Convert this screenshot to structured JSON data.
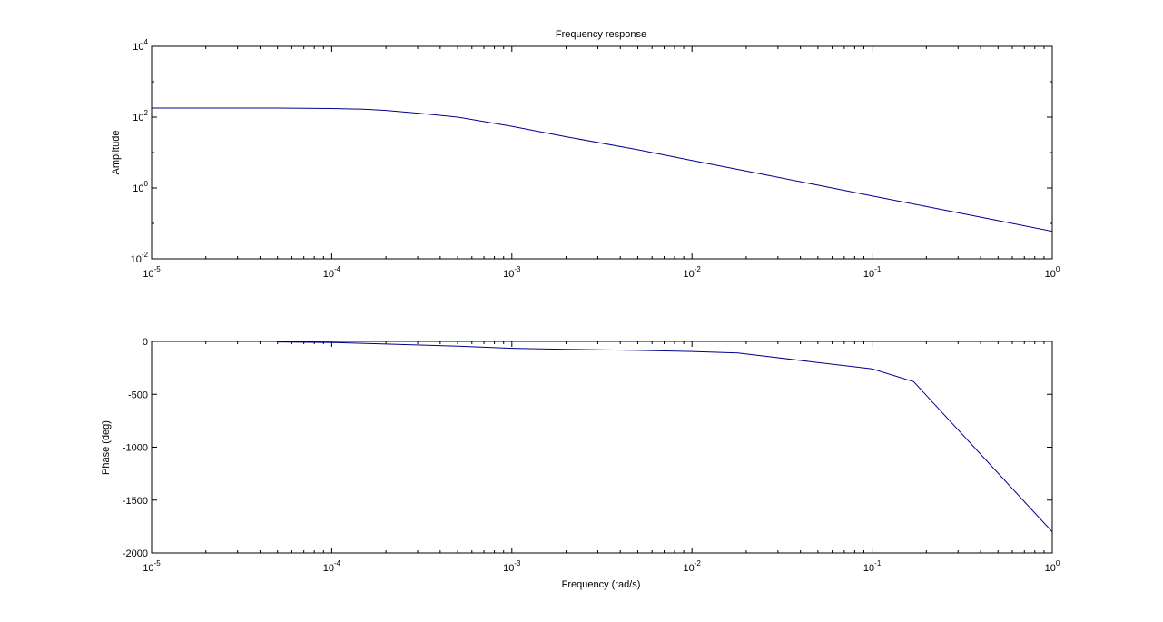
{
  "chart_data": [
    {
      "type": "line",
      "title": "Frequency response",
      "xlabel": "",
      "ylabel": "Amplitude",
      "xscale": "log",
      "yscale": "log",
      "xlim": [
        1e-05,
        1
      ],
      "ylim": [
        0.01,
        10000
      ],
      "grid": false,
      "x_ticks": [
        {
          "base": "10",
          "exp": "-5"
        },
        {
          "base": "10",
          "exp": "-4"
        },
        {
          "base": "10",
          "exp": "-3"
        },
        {
          "base": "10",
          "exp": "-2"
        },
        {
          "base": "10",
          "exp": "-1"
        },
        {
          "base": "10",
          "exp": "0"
        }
      ],
      "y_ticks": [
        {
          "base": "10",
          "exp": "-2"
        },
        {
          "base": "10",
          "exp": "0"
        },
        {
          "base": "10",
          "exp": "2"
        },
        {
          "base": "10",
          "exp": "4"
        }
      ],
      "color": "#00008b",
      "series": [
        {
          "x": [
            1e-05,
            2e-05,
            5e-05,
            0.0001,
            0.00015,
            0.0002,
            0.0003,
            0.0005,
            0.001,
            0.002,
            0.005,
            0.01,
            0.02,
            0.05,
            0.1,
            0.2,
            0.5,
            1
          ],
          "y": [
            180,
            180,
            180,
            175,
            168,
            155,
            130,
            100,
            55,
            28,
            12,
            6,
            3,
            1.2,
            0.6,
            0.3,
            0.12,
            0.06
          ]
        }
      ]
    },
    {
      "type": "line",
      "title": "",
      "xlabel": "Frequency (rad/s)",
      "ylabel": "Phase (deg)",
      "xscale": "log",
      "yscale": "linear",
      "xlim": [
        1e-05,
        1
      ],
      "ylim": [
        -2000,
        0
      ],
      "grid": false,
      "x_ticks": [
        {
          "base": "10",
          "exp": "-5"
        },
        {
          "base": "10",
          "exp": "-4"
        },
        {
          "base": "10",
          "exp": "-3"
        },
        {
          "base": "10",
          "exp": "-2"
        },
        {
          "base": "10",
          "exp": "-1"
        },
        {
          "base": "10",
          "exp": "0"
        }
      ],
      "y_ticks": [
        "0",
        "-500",
        "-1000",
        "-1500",
        "-2000"
      ],
      "y_tick_values": [
        0,
        -500,
        -1000,
        -1500,
        -2000
      ],
      "color": "#00008b",
      "series": [
        {
          "x": [
            5e-05,
            0.0001,
            0.0002,
            0.0005,
            0.001,
            0.002,
            0.005,
            0.01,
            0.018,
            0.1,
            0.17,
            1
          ],
          "y": [
            -5,
            -10,
            -25,
            -45,
            -65,
            -75,
            -85,
            -95,
            -110,
            -260,
            -380,
            -1800
          ]
        }
      ]
    }
  ]
}
